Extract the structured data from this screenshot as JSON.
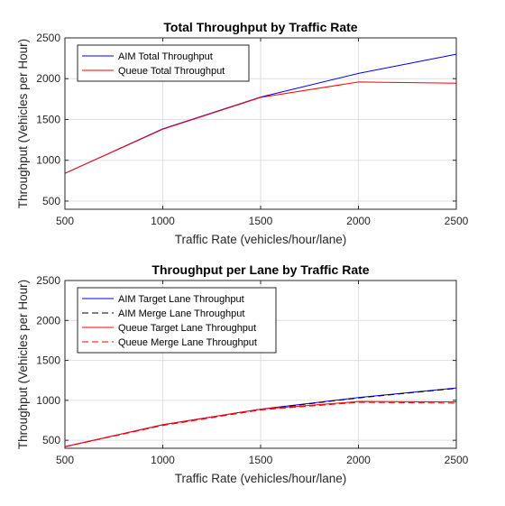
{
  "chart_data": [
    {
      "type": "line",
      "title": "Total Throughput by Traffic Rate",
      "xlabel": "Traffic Rate (vehicles/hour/lane)",
      "ylabel": "Throughput (Vehicles per Hour)",
      "xlim": [
        500,
        2500
      ],
      "ylim": [
        400,
        2500
      ],
      "xticks": [
        500,
        1000,
        1500,
        2000,
        2500
      ],
      "yticks": [
        500,
        1000,
        1500,
        2000,
        2500
      ],
      "grid": true,
      "legend": "top-left",
      "x": [
        500,
        1000,
        1500,
        2000,
        2500
      ],
      "series": [
        {
          "name": "AIM Total Throughput",
          "color": "#0000ff",
          "dash": "solid",
          "values": [
            840,
            1385,
            1775,
            2065,
            2300
          ]
        },
        {
          "name": "Queue Total Throughput",
          "color": "#ff0000",
          "dash": "solid",
          "values": [
            840,
            1380,
            1770,
            1960,
            1945
          ]
        }
      ]
    },
    {
      "type": "line",
      "title": "Throughput per Lane by Traffic Rate",
      "xlabel": "Traffic Rate (vehicles/hour/lane)",
      "ylabel": "Throughput (Vehicles per Hour)",
      "xlim": [
        500,
        2500
      ],
      "ylim": [
        400,
        2500
      ],
      "xticks": [
        500,
        1000,
        1500,
        2000,
        2500
      ],
      "yticks": [
        500,
        1000,
        1500,
        2000,
        2500
      ],
      "grid": true,
      "legend": "top-left",
      "x": [
        500,
        1000,
        1500,
        2000,
        2500
      ],
      "series": [
        {
          "name": "AIM Target Lane Throughput",
          "color": "#0000ff",
          "dash": "solid",
          "values": [
            420,
            695,
            890,
            1035,
            1155
          ]
        },
        {
          "name": "AIM Merge Lane Throughput",
          "color": "#000000",
          "dash": "dashed",
          "values": [
            420,
            690,
            885,
            1030,
            1150
          ]
        },
        {
          "name": "Queue Target Lane Throughput",
          "color": "#ff0000",
          "dash": "solid",
          "values": [
            420,
            695,
            890,
            985,
            980
          ]
        },
        {
          "name": "Queue Merge Lane Throughput",
          "color": "#ff0000",
          "dash": "dashed",
          "values": [
            420,
            685,
            880,
            975,
            965
          ]
        }
      ]
    }
  ]
}
